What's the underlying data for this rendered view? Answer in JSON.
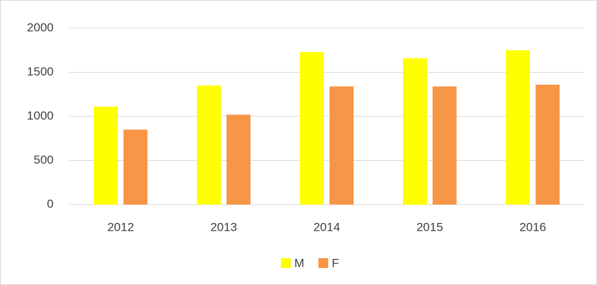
{
  "chart_data": {
    "type": "bar",
    "categories": [
      "2012",
      "2013",
      "2014",
      "2015",
      "2016"
    ],
    "series": [
      {
        "name": "M",
        "color": "#ffff00",
        "values": [
          1110,
          1350,
          1730,
          1660,
          1750
        ]
      },
      {
        "name": "F",
        "color": "#f79646",
        "values": [
          850,
          1020,
          1340,
          1340,
          1360
        ]
      }
    ],
    "ylim": [
      0,
      2000
    ],
    "yticks": [
      0,
      500,
      1000,
      1500,
      2000
    ],
    "grid": true,
    "legend": "bottom"
  }
}
